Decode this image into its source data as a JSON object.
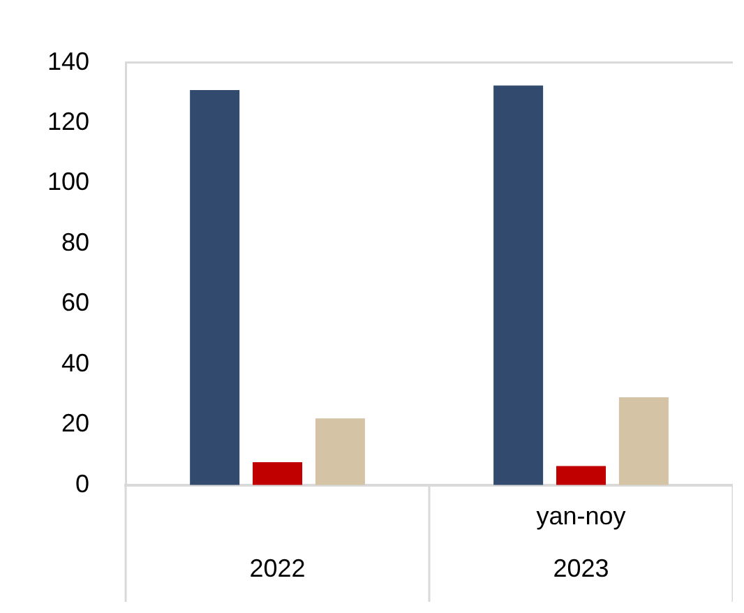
{
  "chart_data": {
    "type": "bar",
    "categories": [
      "2022",
      "2023"
    ],
    "series": [
      {
        "color": "#314a6e",
        "values": [
          130.9,
          132.4
        ]
      },
      {
        "color": "#c00000",
        "values": [
          7.6,
          6.3
        ]
      },
      {
        "color": "#d5c3a5",
        "values": [
          22.1,
          29.1
        ]
      }
    ],
    "ylim": [
      0,
      140
    ],
    "yticks": [
      0,
      20,
      40,
      60,
      80,
      100,
      120,
      140
    ],
    "grid": false,
    "legend": false,
    "annotations": [
      "yan-noy"
    ]
  }
}
